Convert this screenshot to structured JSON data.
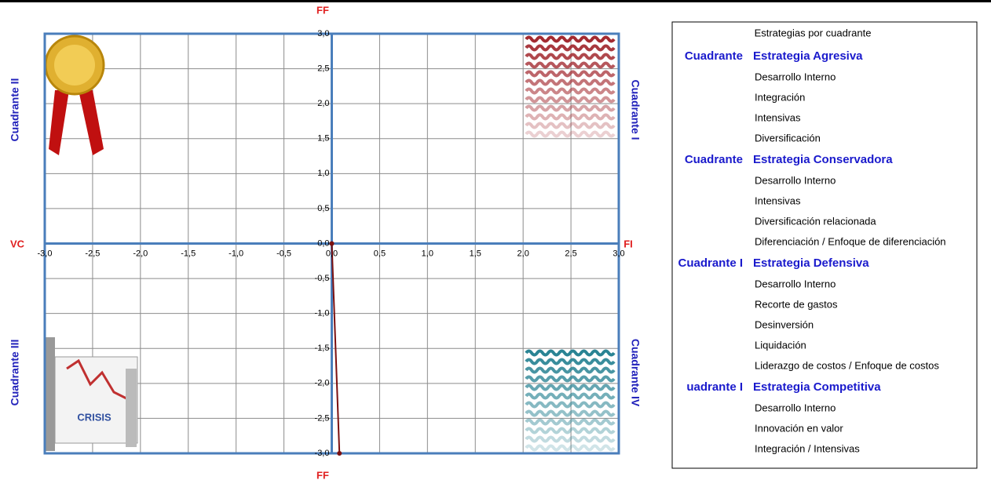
{
  "chart_data": {
    "type": "line",
    "x": [
      0,
      0.08
    ],
    "series": [
      {
        "color": "#7b1010",
        "values": [
          0,
          -3
        ]
      }
    ],
    "xlim": [
      -3,
      3
    ],
    "ylim": [
      -3,
      3
    ],
    "xticks": [
      {
        "value": -3,
        "label": "-3,0"
      },
      {
        "value": -2.5,
        "label": "-2,5"
      },
      {
        "value": -2,
        "label": "-2,0"
      },
      {
        "value": -1.5,
        "label": "-1,5"
      },
      {
        "value": -1,
        "label": "-1,0"
      },
      {
        "value": -0.5,
        "label": "-0,5"
      },
      {
        "value": 0,
        "label": "0,0"
      },
      {
        "value": 0.5,
        "label": "0,5"
      },
      {
        "value": 1,
        "label": "1,0"
      },
      {
        "value": 1.5,
        "label": "1,5"
      },
      {
        "value": 2,
        "label": "2,0"
      },
      {
        "value": 2.5,
        "label": "2,5"
      },
      {
        "value": 3,
        "label": "3,0"
      }
    ],
    "yticks": [
      {
        "value": -3,
        "label": "-3,0"
      },
      {
        "value": -2.5,
        "label": "-2,5"
      },
      {
        "value": -2,
        "label": "-2,0"
      },
      {
        "value": -1.5,
        "label": "-1,5"
      },
      {
        "value": -1,
        "label": "-1,0"
      },
      {
        "value": -0.5,
        "label": "-0,5"
      },
      {
        "value": 0,
        "label": "0,0"
      },
      {
        "value": 0.5,
        "label": "0,5"
      },
      {
        "value": 1,
        "label": "1,0"
      },
      {
        "value": 1.5,
        "label": "1,5"
      },
      {
        "value": 2,
        "label": "2,0"
      },
      {
        "value": 2.5,
        "label": "2,5"
      },
      {
        "value": 3,
        "label": "3,0"
      }
    ],
    "grid": true,
    "axis_labels": {
      "top": "FF",
      "bottom": "FF",
      "left": "VC",
      "right": "FI"
    },
    "quadrant_labels": [
      "Cuadrante I",
      "Cuadrante II",
      "Cuadrante III",
      "Cuadrante IV"
    ],
    "image_text": "CRISIS"
  },
  "strategies": {
    "title": "Estrategias por cuadrante",
    "groups": [
      {
        "quadrant": "Cuadrante",
        "strategy": "Estrategia Agresiva",
        "items": [
          "Desarrollo Interno",
          "Integración",
          "Intensivas",
          "Diversificación"
        ]
      },
      {
        "quadrant": "Cuadrante",
        "strategy": "Estrategia Conservadora",
        "items": [
          "Desarrollo Interno",
          "Intensivas",
          "Diversificación relacionada",
          "Diferenciación / Enfoque de diferenciación"
        ]
      },
      {
        "quadrant": "Cuadrante I",
        "strategy": "Estrategia Defensiva",
        "items": [
          "Desarrollo Interno",
          "Recorte de gastos",
          "Desinversión",
          "Liquidación",
          "Liderazgo de costos / Enfoque de costos"
        ]
      },
      {
        "quadrant": "uadrante I",
        "strategy": "Estrategia Competitiva",
        "items": [
          "Desarrollo Interno",
          "Innovación en valor",
          "Integración / Intensivas"
        ]
      }
    ]
  }
}
